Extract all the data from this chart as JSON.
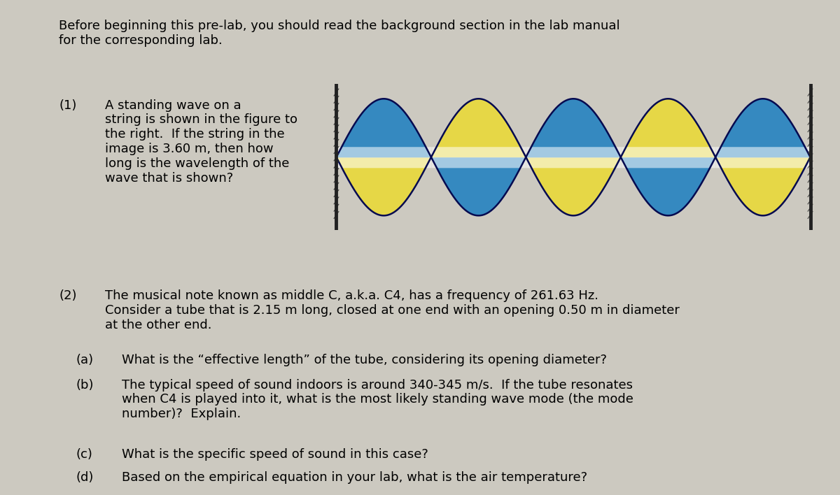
{
  "bg_color": "#ccc9c0",
  "title_text": "Before beginning this pre-lab, you should read the background section in the lab manual\nfor the corresponding lab.",
  "q1_label": "(1)",
  "q1_text": "A standing wave on a\nstring is shown in the figure to\nthe right.  If the string in the\nimage is 3.60 m, then how\nlong is the wavelength of the\nwave that is shown?",
  "q2_label": "(2)",
  "q2_text": "The musical note known as middle C, a.k.a. C4, has a frequency of 261.63 Hz.\nConsider a tube that is 2.15 m long, closed at one end with an opening 0.50 m in diameter\nat the other end.",
  "qa_label": "(a)",
  "qa_text": "What is the “effective length” of the tube, considering its opening diameter?",
  "qb_label": "(b)",
  "qb_text": "The typical speed of sound indoors is around 340-345 m/s.  If the tube resonates\nwhen C4 is played into it, what is the most likely standing wave mode (the mode\nnumber)?  Explain.",
  "qc_label": "(c)",
  "qc_text": "What is the specific speed of sound in this case?",
  "qd_label": "(d)",
  "qd_text": "Based on the empirical equation in your lab, what is the air temperature?",
  "wave_n_loops": 5,
  "wave_blue": "#2080c0",
  "wave_yellow": "#e8d840",
  "wave_outline_color": "#050a50",
  "font_size": 13.0,
  "label_indent": 0.07,
  "text_indent": 0.125,
  "sub_label_indent": 0.09,
  "sub_text_indent": 0.145
}
